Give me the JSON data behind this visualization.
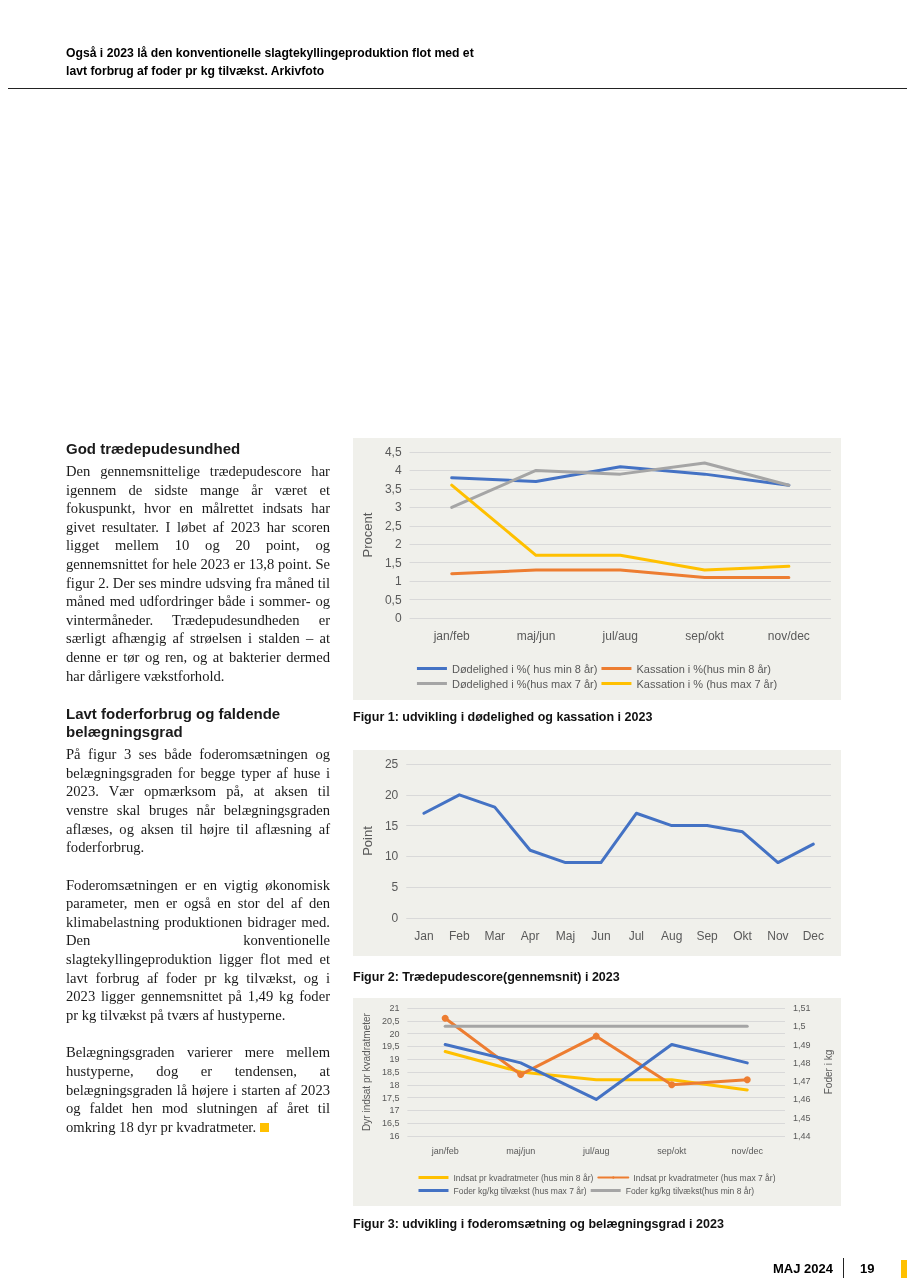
{
  "chart_data": [
    {
      "type": "other",
      "annotations": [
        "Også i 2023 lå den konventionelle slagtekyllingeproduktion flot med et lavt forbrug af foder pr kg tilvækst. Arkivfoto",
        "God trædepudesundhed",
        "Den gennemsnittelige trædepudescore har igennem de sidste mange år været et fokuspunkt, hvor en målrettet indsats har givet resultater. I løbet af 2023 har scoren ligget mellem 10 og 20 point, og gennemsnittet for hele 2023 er 13,8 point. Se figur 2. Der ses mindre udsving fra måned til måned med udfordringer både i sommer- og vintermåneder. Trædepudesundheden er særligt afhængig af strøelsen i stalden – at denne er tør og ren, og at bakterier dermed har dårligere vækstforhold.",
        "Lavt foderforbrug og faldende belægningsgrad",
        "På figur 3 ses både foderomsætningen og belægningsgraden for begge typer af huse i 2023. Vær opmærksom på, at aksen til venstre skal bruges når belægningsgraden aflæses, og aksen til højre til aflæsning af foderforbrug.",
        "Foderomsætningen er en vigtig økonomisk parameter, men er også en stor del af den klimabelastning produktionen bidrager med. Den konventionelle slagtekyllingeproduktion ligger flot med et lavt forbrug af foder pr kg tilvækst, og i 2023 ligger gennemsnittet på 1,49 kg foder pr kg tilvækst på tværs af hustyperne.",
        "Belægningsgraden varierer mere mellem hustyperne, dog er tendensen, at belægningsgraden lå højere i starten af 2023 og faldet hen mod slutningen af året til omkring 18 dyr pr kvadratmeter.",
        "MAJ 2024",
        "19"
      ]
    },
    {
      "type": "line",
      "title": "Figur 1: udvikling i dødelighed og kassation i 2023",
      "ylabel": "Procent",
      "categories": [
        "jan/feb",
        "maj/jun",
        "jul/aug",
        "sep/okt",
        "nov/dec"
      ],
      "series": [
        {
          "name": "Dødelighed i %( hus min 8 år)",
          "color": "#4472c4",
          "values": [
            3.8,
            3.7,
            4.1,
            3.9,
            3.6
          ]
        },
        {
          "name": "Kassation i %(hus min 8 år)",
          "color": "#ed7d31",
          "values": [
            1.2,
            1.3,
            1.3,
            1.1,
            1.1
          ]
        },
        {
          "name": "Dødelighed i %(hus max 7 år)",
          "color": "#a5a5a5",
          "values": [
            3.0,
            4.0,
            3.9,
            4.2,
            3.6
          ]
        },
        {
          "name": "Kassation i % (hus max 7 år)",
          "color": "#ffc000",
          "values": [
            3.6,
            1.7,
            1.7,
            1.3,
            1.4
          ]
        }
      ],
      "ylim": [
        0,
        4.5
      ],
      "yticks": [
        0,
        {
          "value": 0.5,
          "label": "0,5"
        },
        1,
        {
          "value": 1.5,
          "label": "1,5"
        },
        2,
        {
          "value": 2.5,
          "label": "2,5"
        },
        3,
        {
          "value": 3.5,
          "label": "3,5"
        },
        4,
        {
          "value": 4.5,
          "label": "4,5"
        }
      ],
      "grid": "y",
      "legend": "bottom",
      "marker": "none"
    },
    {
      "type": "line",
      "title": "Figur 2: Trædepudescore(gennemsnit) i 2023",
      "ylabel": "Point",
      "categories": [
        "Jan",
        "Feb",
        "Mar",
        "Apr",
        "Maj",
        "Jun",
        "Jul",
        "Aug",
        "Sep",
        "Okt",
        "Nov",
        "Dec"
      ],
      "series": [
        {
          "color": "#4472c4",
          "values": [
            17,
            20,
            18,
            11,
            9,
            9,
            17,
            15,
            15,
            14,
            9,
            12
          ]
        }
      ],
      "ylim": [
        0,
        25
      ],
      "yticks": [
        0,
        5,
        10,
        15,
        20,
        25
      ],
      "grid": "y",
      "legend": false,
      "marker": "none"
    },
    {
      "type": "line",
      "title": "Figur 3: udvikling i foderomsætning og belægningsgrad i 2023",
      "ylabel": "Dyr indsat pr kvadratmeter",
      "y2label": "Foder i kg",
      "categories": [
        "jan/feb",
        "maj/jun",
        "jul/aug",
        "sep/okt",
        "nov/dec"
      ],
      "series": [
        {
          "name": "Indsat pr kvadratmeter (hus min 8 år)",
          "color": "#ffc000",
          "values": [
            19.3,
            18.5,
            18.2,
            18.2,
            17.8
          ]
        },
        {
          "name": "Indsat pr kvadratmeter (hus max 7 år)",
          "color": "#ed7d31",
          "values": [
            20.6,
            18.4,
            19.9,
            18.0,
            18.2
          ],
          "marker": "circle"
        },
        {
          "name": "Foder kg/kg tilvækst (hus max 7 år)",
          "color": "#4472c4",
          "values": [
            1.49,
            1.48,
            1.46,
            1.49,
            1.48
          ],
          "axis": "y2"
        },
        {
          "name": "Foder kg/kg tilvækst(hus min 8 år)",
          "color": "#a5a5a5",
          "values": [
            1.5,
            1.5,
            1.5,
            1.5,
            1.5
          ],
          "axis": "y2"
        }
      ],
      "ylim": [
        16,
        21
      ],
      "yticks": [
        16,
        {
          "value": 16.5,
          "label": "16,5"
        },
        17,
        {
          "value": 17.5,
          "label": "17,5"
        },
        18,
        {
          "value": 18.5,
          "label": "18,5"
        },
        19,
        {
          "value": 19.5,
          "label": "19,5"
        },
        20,
        {
          "value": 20.5,
          "label": "20,5"
        },
        21
      ],
      "y2lim": [
        1.44,
        1.51
      ],
      "y2ticks": [
        {
          "value": 1.44,
          "label": "1,44"
        },
        {
          "value": 1.45,
          "label": "1,45"
        },
        {
          "value": 1.46,
          "label": "1,46"
        },
        {
          "value": 1.47,
          "label": "1,47"
        },
        {
          "value": 1.48,
          "label": "1,48"
        },
        {
          "value": 1.49,
          "label": "1,49"
        },
        {
          "value": 1.5,
          "label": "1,5"
        },
        {
          "value": 1.51,
          "label": "1,51"
        }
      ],
      "grid": "y",
      "legend": "bottom",
      "marker": "none"
    }
  ]
}
